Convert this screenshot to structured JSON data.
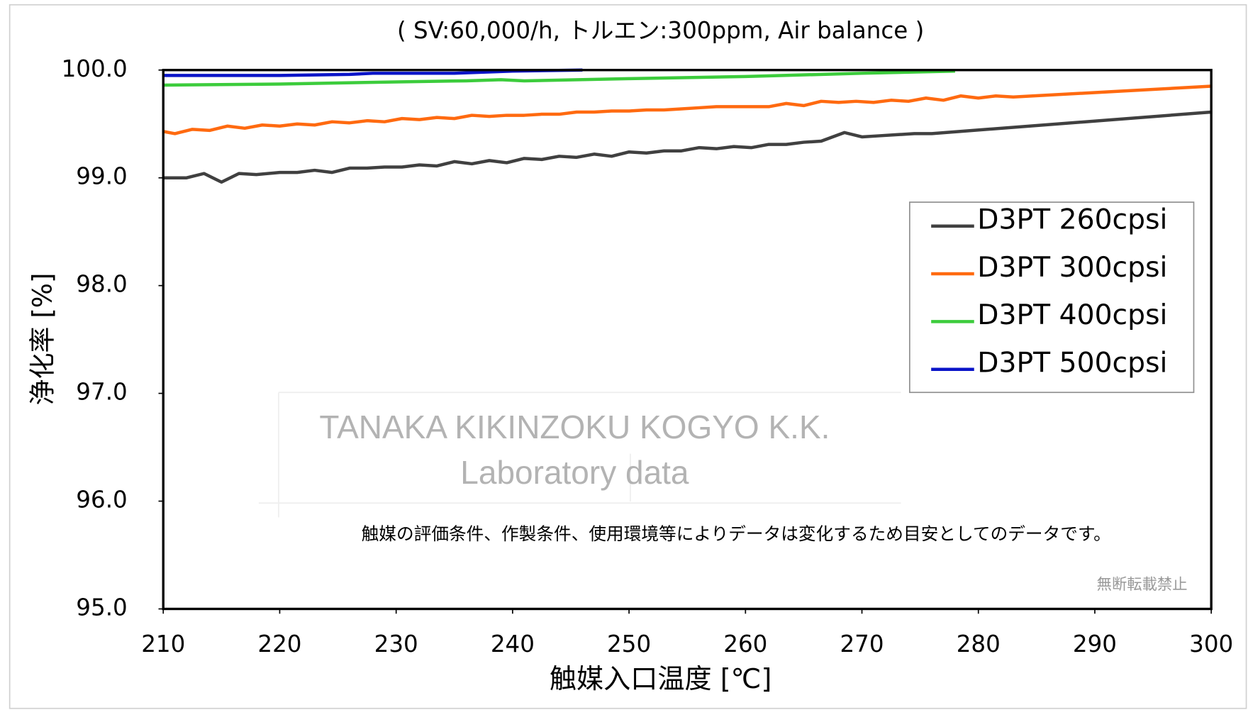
{
  "chart_data": {
    "type": "line",
    "title": "( SV:60,000/h, トルエン:300ppm, Air balance )",
    "x_label": "触媒入口温度 [℃]",
    "y_label": "浄化率 [%]",
    "annotations": [
      "TANAKA KIKINZOKU KOGYO K.K.",
      "Laboratory data",
      "触媒の評価条件、作製条件、使用環境等によりデータは変化するため目安としてのデータです。",
      "無断転載禁止"
    ],
    "xlim": [
      210,
      300
    ],
    "xticks": [
      210,
      220,
      230,
      240,
      250,
      260,
      270,
      280,
      290,
      300
    ],
    "ylim": [
      95,
      100
    ],
    "yticks": [
      {
        "value": 95,
        "label": "95.0"
      },
      {
        "value": 96,
        "label": "96.0"
      },
      {
        "value": 97,
        "label": "97.0"
      },
      {
        "value": 98,
        "label": "98.0"
      },
      {
        "value": 99,
        "label": "99.0"
      },
      {
        "value": 100,
        "label": "100.0"
      }
    ],
    "legend": "right",
    "series": [
      {
        "name": "D3PT 260cpsi",
        "color": "#404040",
        "x": [
          210,
          212,
          213.5,
          215,
          216.5,
          218,
          220,
          221.5,
          223,
          224.5,
          226,
          227.5,
          229,
          230.5,
          232,
          233.5,
          235,
          236.5,
          238,
          239.5,
          241,
          242.5,
          244,
          245.5,
          247,
          248.5,
          250,
          251.5,
          253,
          254.5,
          256,
          257.5,
          259,
          260.5,
          262,
          263.5,
          265,
          266.5,
          268.5,
          270,
          271.5,
          273,
          274.5,
          276,
          300
        ],
        "values": [
          99.0,
          99.0,
          99.04,
          98.96,
          99.04,
          99.03,
          99.05,
          99.05,
          99.07,
          99.05,
          99.09,
          99.09,
          99.1,
          99.1,
          99.12,
          99.11,
          99.15,
          99.13,
          99.16,
          99.14,
          99.18,
          99.17,
          99.2,
          99.19,
          99.22,
          99.2,
          99.24,
          99.23,
          99.25,
          99.25,
          99.28,
          99.27,
          99.29,
          99.28,
          99.31,
          99.31,
          99.33,
          99.34,
          99.42,
          99.38,
          99.39,
          99.4,
          99.41,
          99.41,
          99.61
        ]
      },
      {
        "name": "D3PT 300cpsi",
        "color": "#ff6a10",
        "x": [
          210,
          211,
          212.5,
          214,
          215.5,
          217,
          218.5,
          220,
          221.5,
          223,
          224.5,
          226,
          227.5,
          229,
          230.5,
          232,
          233.5,
          235,
          236.5,
          238,
          239.5,
          241,
          242.5,
          244,
          245.5,
          247,
          248.5,
          250,
          251.5,
          253,
          254.5,
          256,
          257.5,
          259,
          260.5,
          262,
          263.5,
          265,
          266.5,
          268,
          269.5,
          271,
          272.5,
          274,
          275.5,
          277,
          278.5,
          280,
          281.5,
          283,
          300
        ],
        "values": [
          99.43,
          99.41,
          99.45,
          99.44,
          99.48,
          99.46,
          99.49,
          99.48,
          99.5,
          99.49,
          99.52,
          99.51,
          99.53,
          99.52,
          99.55,
          99.54,
          99.56,
          99.55,
          99.58,
          99.57,
          99.58,
          99.58,
          99.59,
          99.59,
          99.61,
          99.61,
          99.62,
          99.62,
          99.63,
          99.63,
          99.64,
          99.65,
          99.66,
          99.66,
          99.66,
          99.66,
          99.69,
          99.67,
          99.71,
          99.7,
          99.71,
          99.7,
          99.72,
          99.71,
          99.74,
          99.72,
          99.76,
          99.74,
          99.76,
          99.75,
          99.85
        ]
      },
      {
        "name": "D3PT 400cpsi",
        "color": "#3ccc3c",
        "x": [
          210,
          220,
          230,
          236,
          239,
          241,
          250,
          260,
          270,
          278
        ],
        "values": [
          99.86,
          99.87,
          99.89,
          99.9,
          99.91,
          99.9,
          99.92,
          99.94,
          99.97,
          99.99
        ]
      },
      {
        "name": "D3PT 500cpsi",
        "color": "#0a14c8",
        "x": [
          210,
          220,
          226,
          228,
          235,
          240,
          246
        ],
        "values": [
          99.95,
          99.95,
          99.96,
          99.97,
          99.97,
          99.99,
          100.0
        ]
      }
    ]
  }
}
